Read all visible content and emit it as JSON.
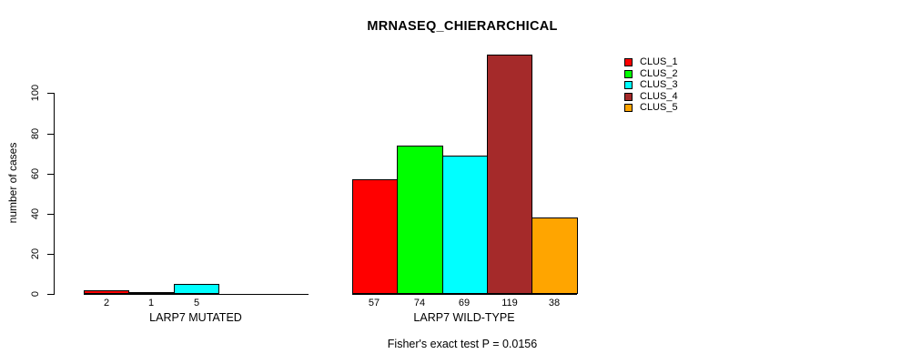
{
  "chart_data": {
    "type": "bar",
    "title": "MRNASEQ_CHIERARCHICAL",
    "ylabel": "number of cases",
    "ylim": [
      0,
      100
    ],
    "yticks": [
      0,
      20,
      40,
      60,
      80,
      100
    ],
    "grid": false,
    "legend_position": "right",
    "legend": [
      {
        "name": "CLUS_1",
        "color": "#FF0000"
      },
      {
        "name": "CLUS_2",
        "color": "#00FF00"
      },
      {
        "name": "CLUS_3",
        "color": "#00FFFF"
      },
      {
        "name": "CLUS_4",
        "color": "#A52A2A"
      },
      {
        "name": "CLUS_5",
        "color": "#FFA500"
      }
    ],
    "groups": [
      {
        "label": "LARP7 MUTATED",
        "values": [
          2,
          1,
          5,
          0,
          0
        ],
        "bar_labels": [
          "2",
          "1",
          "5",
          "",
          ""
        ]
      },
      {
        "label": "LARP7 WILD-TYPE",
        "values": [
          57,
          74,
          69,
          119,
          38
        ],
        "bar_labels": [
          "57",
          "74",
          "69",
          "119",
          "38"
        ]
      }
    ],
    "annotation": "Fisher's exact test P = 0.0156"
  }
}
